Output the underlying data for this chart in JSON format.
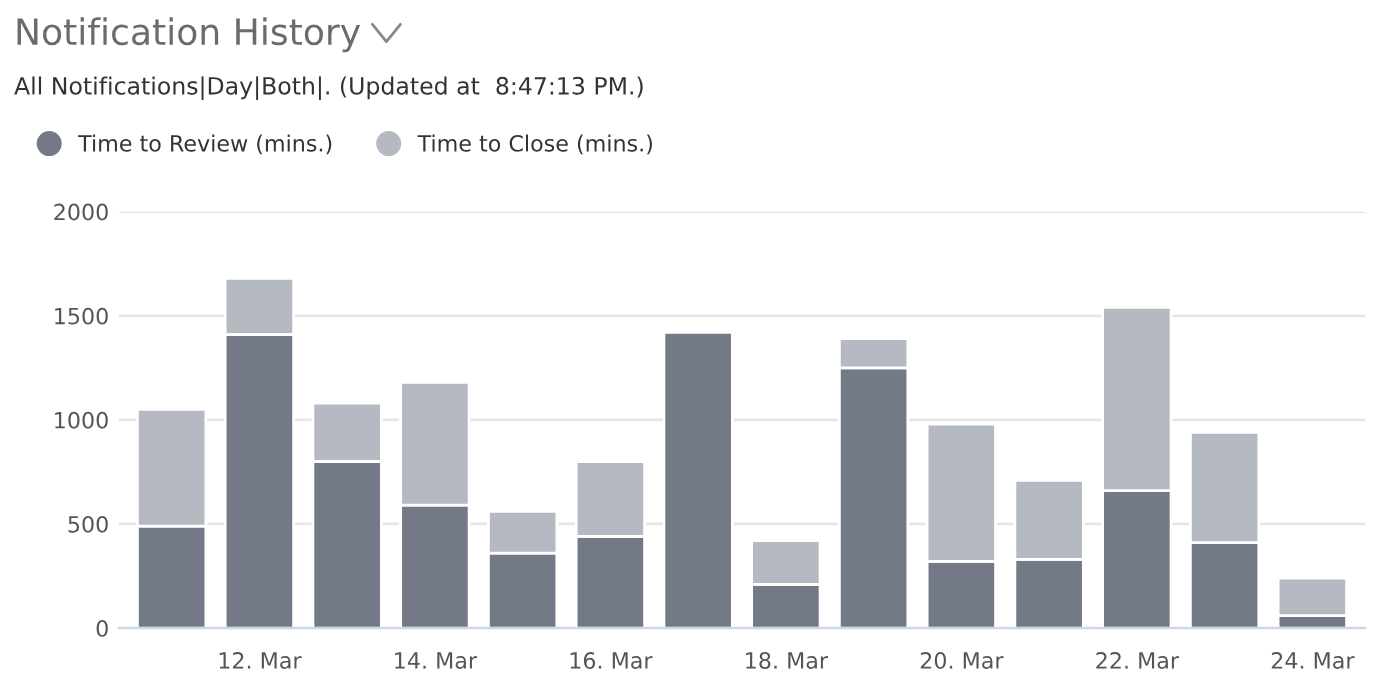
{
  "chart_data": {
    "type": "bar",
    "title": "Notification History",
    "subtitle": "All Notifications|Day|Both|. (Updated at  8:47:13 PM.)",
    "categories": [
      null,
      "12. Mar",
      null,
      "14. Mar",
      null,
      "16. Mar",
      null,
      "18. Mar",
      null,
      "20. Mar",
      null,
      "22. Mar",
      null,
      "24. Mar"
    ],
    "stacked": true,
    "series": [
      {
        "name": "Time to Review (mins.)",
        "color": "#737986",
        "values": [
          490,
          1410,
          800,
          590,
          360,
          440,
          1420,
          210,
          1250,
          320,
          330,
          660,
          410,
          60
        ]
      },
      {
        "name": "Time to Close (mins.)",
        "color": "#b5b9c2",
        "values": [
          560,
          270,
          280,
          590,
          200,
          360,
          null,
          210,
          140,
          660,
          380,
          880,
          530,
          180
        ]
      }
    ],
    "ylim": [
      0,
      2000
    ],
    "yticks": [
      0,
      500,
      1000,
      1500,
      2000
    ],
    "grid": "y",
    "legend": "top left"
  }
}
